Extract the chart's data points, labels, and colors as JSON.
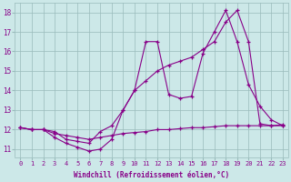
{
  "xlabel": "Windchill (Refroidissement éolien,°C)",
  "background_color": "#cce8e8",
  "line_color": "#880088",
  "grid_color": "#99bbbb",
  "xlim": [
    -0.5,
    23.5
  ],
  "ylim": [
    10.6,
    18.5
  ],
  "yticks": [
    11,
    12,
    13,
    14,
    15,
    16,
    17,
    18
  ],
  "xticks": [
    0,
    1,
    2,
    3,
    4,
    5,
    6,
    7,
    8,
    9,
    10,
    11,
    12,
    13,
    14,
    15,
    16,
    17,
    18,
    19,
    20,
    21,
    22,
    23
  ],
  "line1_x": [
    0,
    1,
    2,
    3,
    4,
    5,
    6,
    7,
    8,
    9,
    10,
    11,
    12,
    13,
    14,
    15,
    16,
    17,
    18,
    19,
    20,
    21,
    22,
    23
  ],
  "line1_y": [
    12.1,
    12.0,
    12.0,
    11.6,
    11.3,
    11.1,
    10.9,
    11.0,
    11.5,
    13.0,
    14.0,
    16.5,
    16.5,
    13.8,
    13.6,
    13.7,
    15.9,
    17.0,
    18.1,
    16.5,
    14.3,
    13.2,
    12.5,
    12.2
  ],
  "line2_x": [
    0,
    1,
    2,
    3,
    4,
    5,
    6,
    7,
    8,
    9,
    10,
    11,
    12,
    13,
    14,
    15,
    16,
    17,
    18,
    19,
    20,
    21,
    22,
    23
  ],
  "line2_y": [
    12.1,
    12.0,
    12.0,
    11.9,
    11.5,
    11.4,
    11.3,
    11.9,
    12.2,
    13.0,
    14.0,
    14.5,
    15.0,
    15.3,
    15.5,
    15.7,
    16.1,
    16.5,
    17.5,
    18.1,
    16.5,
    12.3,
    12.2,
    12.2
  ],
  "line3_x": [
    0,
    1,
    2,
    3,
    4,
    5,
    6,
    7,
    8,
    9,
    10,
    11,
    12,
    13,
    14,
    15,
    16,
    17,
    18,
    19,
    20,
    21,
    22,
    23
  ],
  "line3_y": [
    12.1,
    12.0,
    12.0,
    11.8,
    11.7,
    11.6,
    11.5,
    11.6,
    11.7,
    11.8,
    11.85,
    11.9,
    12.0,
    12.0,
    12.05,
    12.1,
    12.1,
    12.15,
    12.2,
    12.2,
    12.2,
    12.2,
    12.2,
    12.25
  ]
}
